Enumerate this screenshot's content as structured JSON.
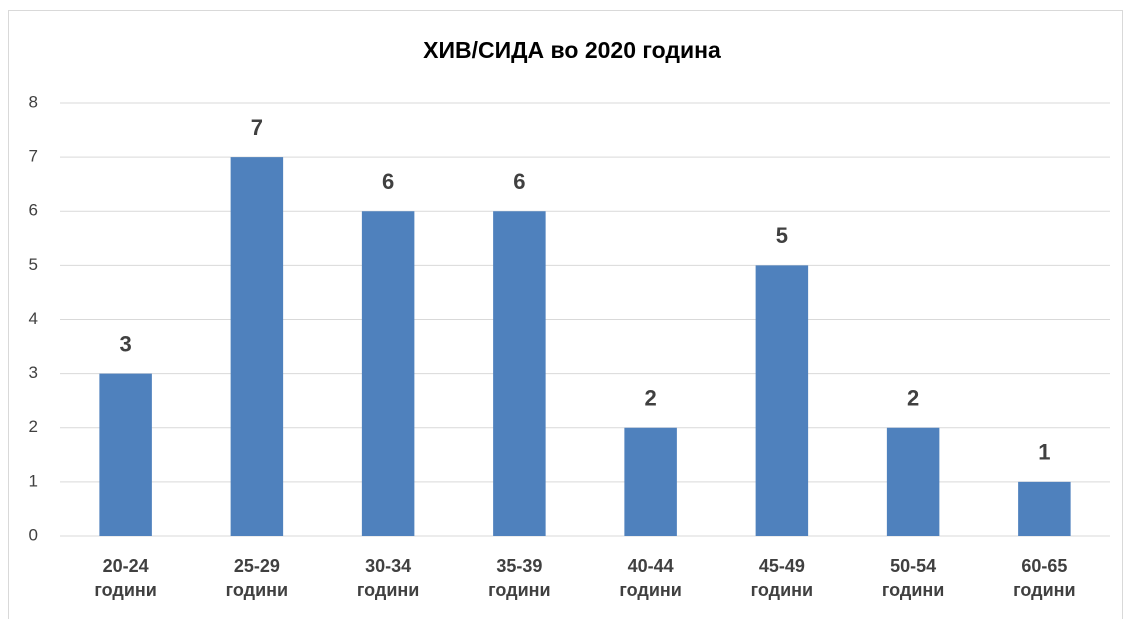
{
  "chart_data": {
    "type": "bar",
    "title": "ХИВ/СИДА во 2020 година",
    "categories": [
      "20-24 години",
      "25-29 години",
      "30-34 години",
      "35-39 години",
      "40-44 години",
      "45-49 години",
      "50-54 години",
      "60-65 години"
    ],
    "values": [
      3,
      7,
      6,
      6,
      2,
      5,
      2,
      1
    ],
    "color": "#4f81bd",
    "ylim": [
      0,
      8
    ],
    "yticks": [
      0,
      1,
      2,
      3,
      4,
      5,
      6,
      7,
      8
    ],
    "grid": true
  }
}
